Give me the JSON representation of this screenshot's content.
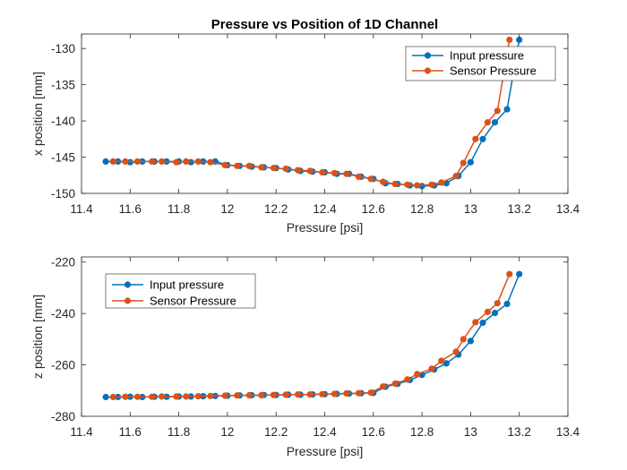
{
  "chart_data": [
    {
      "type": "line",
      "title": "Pressure vs Position of 1D Channel",
      "xlabel": "Pressure [psi]",
      "ylabel": "x position [mm]",
      "xlim": [
        11.4,
        13.4
      ],
      "ylim": [
        -150,
        -128
      ],
      "xticks": [
        "11.4",
        "11.6",
        "11.8",
        "12",
        "12.2",
        "12.4",
        "12.6",
        "12.8",
        "13",
        "13.2",
        "13.4"
      ],
      "yticks": [
        "-150",
        "-145",
        "-140",
        "-135",
        "-130"
      ],
      "legend_position": "top-right",
      "grid": false,
      "series": [
        {
          "name": "Input pressure",
          "color": "#0072BD",
          "x": [
            11.5,
            11.55,
            11.6,
            11.65,
            11.7,
            11.75,
            11.8,
            11.85,
            11.9,
            11.95,
            12.0,
            12.05,
            12.1,
            12.15,
            12.2,
            12.25,
            12.3,
            12.35,
            12.4,
            12.45,
            12.5,
            12.55,
            12.6,
            12.65,
            12.7,
            12.75,
            12.8,
            12.85,
            12.9,
            12.95,
            13.0,
            13.05,
            13.1,
            13.15,
            13.2
          ],
          "y": [
            -145.6,
            -145.6,
            -145.7,
            -145.6,
            -145.6,
            -145.6,
            -145.6,
            -145.7,
            -145.6,
            -145.6,
            -146.1,
            -146.2,
            -146.3,
            -146.4,
            -146.5,
            -146.7,
            -146.9,
            -147.0,
            -147.1,
            -147.3,
            -147.3,
            -147.7,
            -148.0,
            -148.6,
            -148.7,
            -148.9,
            -149.0,
            -148.9,
            -148.6,
            -147.6,
            -145.7,
            -142.5,
            -140.2,
            -138.4,
            -128.8
          ]
        },
        {
          "name": "Sensor Pressure",
          "color": "#D95319",
          "x": [
            11.53,
            11.58,
            11.63,
            11.69,
            11.73,
            11.79,
            11.83,
            11.88,
            11.93,
            11.99,
            12.04,
            12.09,
            12.14,
            12.19,
            12.24,
            12.29,
            12.34,
            12.39,
            12.44,
            12.49,
            12.54,
            12.59,
            12.64,
            12.69,
            12.74,
            12.78,
            12.84,
            12.88,
            12.94,
            12.97,
            13.02,
            13.07,
            13.11,
            13.16
          ],
          "y": [
            -145.6,
            -145.6,
            -145.6,
            -145.6,
            -145.6,
            -145.7,
            -145.6,
            -145.6,
            -145.7,
            -146.1,
            -146.2,
            -146.2,
            -146.4,
            -146.5,
            -146.6,
            -146.8,
            -146.9,
            -147.1,
            -147.2,
            -147.3,
            -147.7,
            -148.0,
            -148.4,
            -148.7,
            -148.8,
            -148.9,
            -148.8,
            -148.5,
            -147.6,
            -145.8,
            -142.5,
            -140.2,
            -138.6,
            -128.8
          ]
        }
      ]
    },
    {
      "type": "line",
      "title": "",
      "xlabel": "Pressure [psi]",
      "ylabel": "z position [mm]",
      "xlim": [
        11.4,
        13.4
      ],
      "ylim": [
        -280,
        -218
      ],
      "xticks": [
        "11.4",
        "11.6",
        "11.8",
        "12",
        "12.2",
        "12.4",
        "12.6",
        "12.8",
        "13",
        "13.2",
        "13.4"
      ],
      "yticks": [
        "-280",
        "-260",
        "-240",
        "-220"
      ],
      "legend_position": "top-left",
      "grid": false,
      "series": [
        {
          "name": "Input pressure",
          "color": "#0072BD",
          "x": [
            11.5,
            11.55,
            11.6,
            11.65,
            11.7,
            11.75,
            11.8,
            11.85,
            11.9,
            11.95,
            12.0,
            12.05,
            12.1,
            12.15,
            12.2,
            12.25,
            12.3,
            12.35,
            12.4,
            12.45,
            12.5,
            12.55,
            12.6,
            12.65,
            12.7,
            12.75,
            12.8,
            12.85,
            12.9,
            12.95,
            13.0,
            13.05,
            13.1,
            13.15,
            13.2
          ],
          "y": [
            -272.5,
            -272.5,
            -272.4,
            -272.5,
            -272.4,
            -272.4,
            -272.3,
            -272.3,
            -272.2,
            -272.1,
            -272.0,
            -271.9,
            -271.8,
            -271.7,
            -271.7,
            -271.6,
            -271.6,
            -271.5,
            -271.4,
            -271.3,
            -271.2,
            -271.0,
            -270.9,
            -268.5,
            -267.4,
            -265.9,
            -263.9,
            -261.8,
            -259.4,
            -256.0,
            -250.7,
            -243.6,
            -239.8,
            -236.3,
            -224.7
          ]
        },
        {
          "name": "Sensor Pressure",
          "color": "#D95319",
          "x": [
            11.53,
            11.58,
            11.63,
            11.69,
            11.73,
            11.79,
            11.83,
            11.88,
            11.93,
            11.99,
            12.04,
            12.09,
            12.14,
            12.19,
            12.24,
            12.29,
            12.34,
            12.39,
            12.44,
            12.49,
            12.54,
            12.59,
            12.64,
            12.69,
            12.74,
            12.78,
            12.84,
            12.88,
            12.94,
            12.97,
            13.02,
            13.07,
            13.11,
            13.16
          ],
          "y": [
            -272.5,
            -272.4,
            -272.4,
            -272.4,
            -272.3,
            -272.3,
            -272.3,
            -272.2,
            -272.1,
            -272.0,
            -271.9,
            -271.8,
            -271.8,
            -271.7,
            -271.6,
            -271.5,
            -271.5,
            -271.4,
            -271.3,
            -271.1,
            -271.0,
            -270.8,
            -268.4,
            -267.3,
            -265.7,
            -263.6,
            -261.5,
            -258.4,
            -254.9,
            -250.0,
            -243.4,
            -239.4,
            -236.0,
            -224.7
          ]
        }
      ]
    }
  ]
}
